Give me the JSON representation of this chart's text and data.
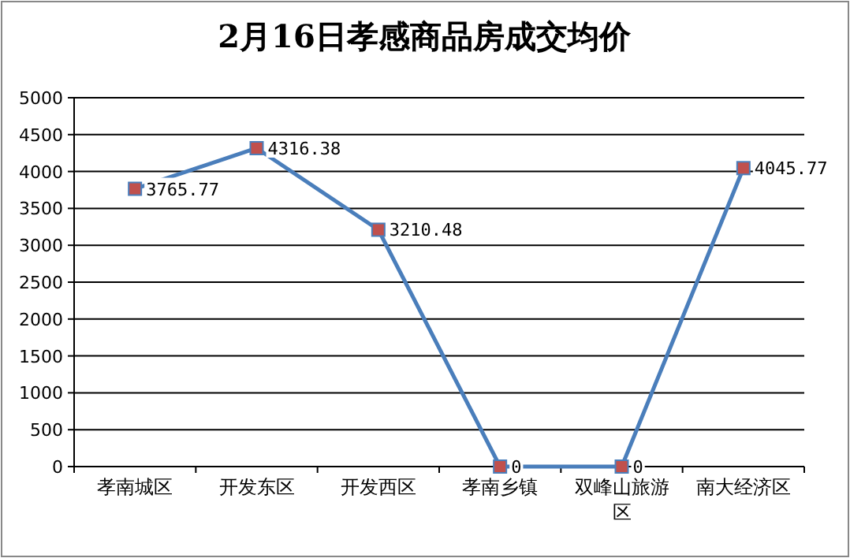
{
  "chart_data": {
    "type": "line",
    "title": "2月16日孝感商品房成交均价",
    "categories": [
      "孝南城区",
      "开发东区",
      "开发西区",
      "孝南乡镇",
      "双峰山旅游区",
      "南大经济区"
    ],
    "values": [
      3765.77,
      4316.38,
      3210.48,
      0,
      0,
      4045.77
    ],
    "color": "#4a7ebb",
    "marker": "square",
    "data_labels": true,
    "ylim": [
      0,
      5000
    ],
    "yticks": [
      0,
      500,
      1000,
      1500,
      2000,
      2500,
      3000,
      3500,
      4000,
      4500,
      5000
    ],
    "grid": "y"
  }
}
